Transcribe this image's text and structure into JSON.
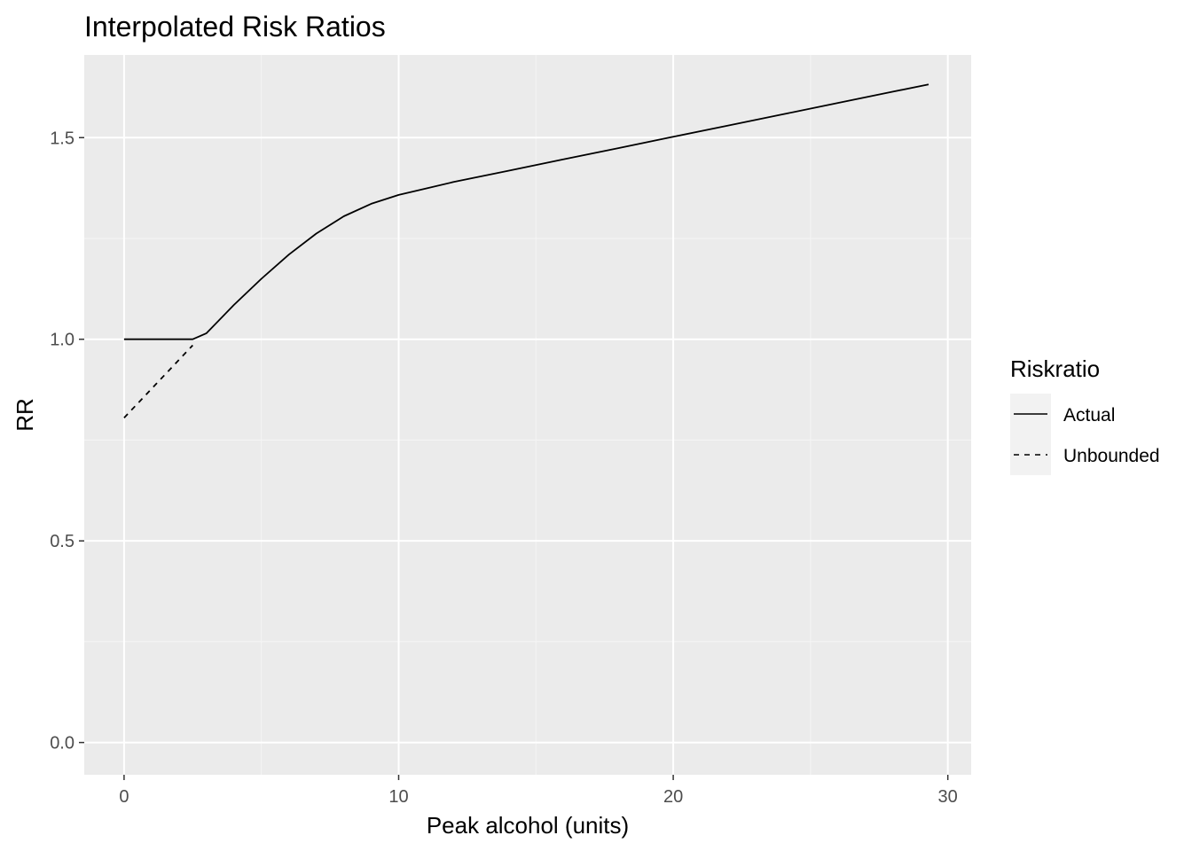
{
  "chart_data": {
    "type": "line",
    "title": "Interpolated Risk Ratios",
    "xlabel": "Peak alcohol (units)",
    "ylabel": "RR",
    "xlim": [
      -1.45,
      30.85
    ],
    "ylim": [
      -0.08,
      1.705
    ],
    "x_ticks": [
      0,
      10,
      20,
      30
    ],
    "y_ticks": [
      0.0,
      0.5,
      1.0,
      1.5
    ],
    "x_tick_labels": [
      "0",
      "10",
      "20",
      "30"
    ],
    "y_tick_labels": [
      "0.0",
      "0.5",
      "1.0",
      "1.5"
    ],
    "grid": true,
    "legend": {
      "title": "Riskratio",
      "position": "right",
      "entries": [
        "Actual",
        "Unbounded"
      ]
    },
    "series": [
      {
        "name": "Actual",
        "dash": "solid",
        "color": "#000000",
        "x": [
          0,
          2.5,
          3,
          4,
          5,
          6,
          7,
          8,
          9,
          10,
          11,
          12,
          14,
          16,
          18,
          20,
          22,
          24,
          26,
          28,
          29.3
        ],
        "y": [
          1.0,
          1.0,
          1.015,
          1.085,
          1.15,
          1.21,
          1.262,
          1.305,
          1.336,
          1.358,
          1.374,
          1.39,
          1.418,
          1.446,
          1.474,
          1.502,
          1.53,
          1.558,
          1.586,
          1.614,
          1.632
        ]
      },
      {
        "name": "Unbounded",
        "dash": "dashed",
        "color": "#000000",
        "x": [
          0,
          2.5
        ],
        "y": [
          0.805,
          0.985
        ]
      }
    ]
  },
  "colors": {
    "panel_background": "#ebebeb",
    "grid_major": "#ffffff",
    "grid_minor": "#f5f5f5",
    "legend_key_background": "#f2f2f2",
    "line": "#000000"
  }
}
